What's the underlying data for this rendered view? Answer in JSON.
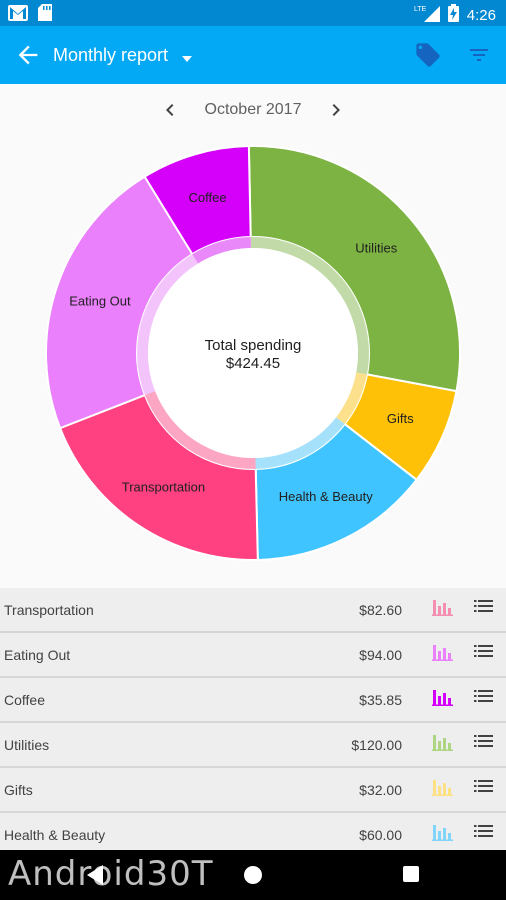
{
  "status_bar": {
    "time": "4:26",
    "network": "LTE"
  },
  "app_bar": {
    "title": "Monthly report"
  },
  "month_nav": {
    "label": "October 2017"
  },
  "chart_data": {
    "type": "pie",
    "donut": true,
    "center_title": "Total spending",
    "center_value": "$424.45",
    "slices": [
      {
        "label": "Utilities",
        "value": 120.0,
        "color": "#7cb342"
      },
      {
        "label": "Gifts",
        "value": 32.0,
        "color": "#ffc107"
      },
      {
        "label": "Health & Beauty",
        "value": 60.0,
        "color": "#40c4ff"
      },
      {
        "label": "Transportation",
        "value": 82.6,
        "color": "#ff4081"
      },
      {
        "label": "Eating Out",
        "value": 94.0,
        "color": "#ea80fc"
      },
      {
        "label": "Coffee",
        "value": 35.85,
        "color": "#d500f9"
      }
    ]
  },
  "categories": [
    {
      "name": "Transportation",
      "amount": "$82.60",
      "color": "#f48fb1"
    },
    {
      "name": "Eating Out",
      "amount": "$94.00",
      "color": "#ea80fc"
    },
    {
      "name": "Coffee",
      "amount": "$35.85",
      "color": "#d500f9"
    },
    {
      "name": "Utilities",
      "amount": "$120.00",
      "color": "#aed581"
    },
    {
      "name": "Gifts",
      "amount": "$32.00",
      "color": "#ffe082"
    },
    {
      "name": "Health & Beauty",
      "amount": "$60.00",
      "color": "#81d4fa"
    }
  ],
  "watermark": "Android30T"
}
